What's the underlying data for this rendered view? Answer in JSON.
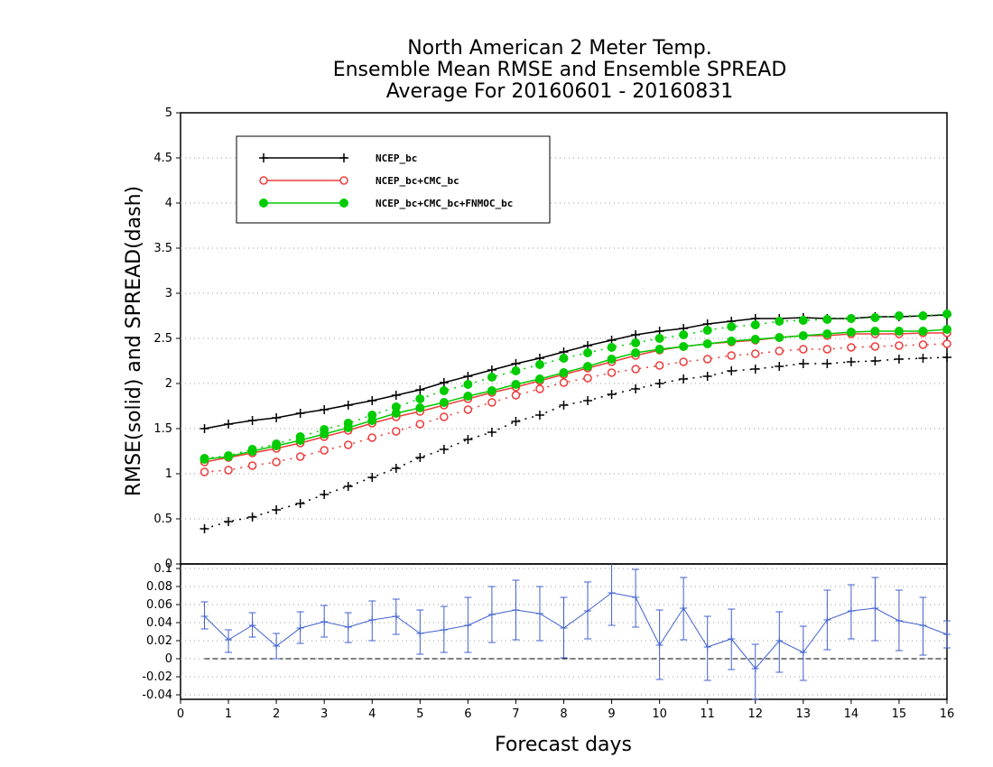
{
  "chart_data": [
    {
      "type": "line",
      "title_lines": [
        "North American 2 Meter Temp.",
        "Ensemble Mean RMSE and Ensemble SPREAD",
        "Average For 20160601 - 20160831"
      ],
      "ylabel": "RMSE(solid) and SPREAD(dash)",
      "xlim": [
        0,
        16
      ],
      "ylim": [
        0,
        5
      ],
      "yticks": [
        "0",
        "0.5",
        "1",
        "1.5",
        "2",
        "2.5",
        "3",
        "3.5",
        "4",
        "4.5",
        "5"
      ],
      "grid": true,
      "legend_position": "top-left",
      "x": [
        0.5,
        1,
        1.5,
        2,
        2.5,
        3,
        3.5,
        4,
        4.5,
        5,
        5.5,
        6,
        6.5,
        7,
        7.5,
        8,
        8.5,
        9,
        9.5,
        10,
        10.5,
        11,
        11.5,
        12,
        12.5,
        13,
        13.5,
        14,
        14.5,
        15,
        15.5,
        16
      ],
      "series": [
        {
          "name": "NCEP_bc",
          "color": "#000000",
          "marker": "plus",
          "rmse": [
            1.5,
            1.55,
            1.59,
            1.62,
            1.67,
            1.71,
            1.76,
            1.81,
            1.87,
            1.93,
            2.01,
            2.08,
            2.15,
            2.22,
            2.28,
            2.35,
            2.42,
            2.48,
            2.54,
            2.58,
            2.61,
            2.66,
            2.69,
            2.72,
            2.72,
            2.73,
            2.72,
            2.72,
            2.74,
            2.74,
            2.75,
            2.76
          ],
          "spread": [
            0.39,
            0.47,
            0.52,
            0.6,
            0.67,
            0.77,
            0.86,
            0.96,
            1.06,
            1.18,
            1.27,
            1.38,
            1.46,
            1.58,
            1.65,
            1.76,
            1.81,
            1.88,
            1.94,
            2.0,
            2.05,
            2.08,
            2.14,
            2.16,
            2.19,
            2.22,
            2.22,
            2.24,
            2.25,
            2.27,
            2.28,
            2.29
          ]
        },
        {
          "name": "NCEP_bc+CMC_bc",
          "color": "#ee3b3b",
          "marker": "open-circle",
          "rmse": [
            1.13,
            1.18,
            1.23,
            1.28,
            1.34,
            1.41,
            1.48,
            1.56,
            1.63,
            1.69,
            1.76,
            1.83,
            1.9,
            1.96,
            2.03,
            2.1,
            2.17,
            2.24,
            2.31,
            2.37,
            2.41,
            2.44,
            2.46,
            2.48,
            2.51,
            2.53,
            2.53,
            2.55,
            2.55,
            2.55,
            2.56,
            2.56
          ],
          "spread": [
            1.02,
            1.04,
            1.09,
            1.13,
            1.19,
            1.26,
            1.32,
            1.4,
            1.47,
            1.55,
            1.63,
            1.71,
            1.79,
            1.87,
            1.94,
            2.01,
            2.06,
            2.12,
            2.16,
            2.2,
            2.24,
            2.27,
            2.31,
            2.33,
            2.36,
            2.38,
            2.38,
            2.4,
            2.41,
            2.42,
            2.43,
            2.44
          ]
        },
        {
          "name": "NCEP_bc+CMC_bc+FNMOC_bc",
          "color": "#00cc00",
          "marker": "filled-circle",
          "rmse": [
            1.16,
            1.19,
            1.25,
            1.31,
            1.37,
            1.44,
            1.51,
            1.59,
            1.67,
            1.73,
            1.79,
            1.86,
            1.92,
            1.99,
            2.05,
            2.12,
            2.19,
            2.27,
            2.34,
            2.38,
            2.41,
            2.44,
            2.47,
            2.49,
            2.51,
            2.53,
            2.55,
            2.57,
            2.58,
            2.58,
            2.58,
            2.6
          ],
          "spread": [
            1.17,
            1.2,
            1.27,
            1.33,
            1.41,
            1.49,
            1.56,
            1.65,
            1.74,
            1.83,
            1.92,
            1.99,
            2.07,
            2.14,
            2.21,
            2.28,
            2.34,
            2.4,
            2.45,
            2.5,
            2.54,
            2.59,
            2.63,
            2.65,
            2.69,
            2.7,
            2.71,
            2.72,
            2.73,
            2.75,
            2.75,
            2.77
          ]
        }
      ]
    },
    {
      "type": "line",
      "xlabel": "Forecast days",
      "xlim": [
        0,
        16
      ],
      "ylim": [
        -0.045,
        0.105
      ],
      "xticks": [
        "0",
        "1",
        "2",
        "3",
        "4",
        "5",
        "6",
        "7",
        "8",
        "9",
        "10",
        "11",
        "12",
        "13",
        "14",
        "15",
        "16"
      ],
      "yticks": [
        "-0.04",
        "-0.02",
        "0",
        "0.02",
        "0.04",
        "0.06",
        "0.08",
        "0.1"
      ],
      "reference_line": 0,
      "error_bars": true,
      "series": [
        {
          "color": "#4060d0",
          "x": [
            0.5,
            1,
            1.5,
            2,
            2.5,
            3,
            3.5,
            4,
            4.5,
            5,
            5.5,
            6,
            6.5,
            7,
            7.5,
            8,
            8.5,
            9,
            9.5,
            10,
            10.5,
            11,
            11.5,
            12,
            12.5,
            13,
            13.5,
            14,
            14.5,
            15,
            15.5,
            16
          ],
          "values": [
            0.047,
            0.021,
            0.037,
            0.014,
            0.034,
            0.041,
            0.035,
            0.043,
            0.047,
            0.028,
            0.032,
            0.037,
            0.049,
            0.054,
            0.05,
            0.034,
            0.053,
            0.073,
            0.068,
            0.015,
            0.056,
            0.013,
            0.022,
            -0.011,
            0.02,
            0.007,
            0.043,
            0.053,
            0.056,
            0.042,
            0.037,
            0.027
          ],
          "upper": [
            0.063,
            0.032,
            0.051,
            0.028,
            0.052,
            0.059,
            0.051,
            0.064,
            0.066,
            0.054,
            0.058,
            0.068,
            0.08,
            0.087,
            0.08,
            0.068,
            0.085,
            0.106,
            0.099,
            0.054,
            0.09,
            0.047,
            0.055,
            0.016,
            0.052,
            0.036,
            0.076,
            0.082,
            0.09,
            0.076,
            0.068,
            0.042
          ],
          "lower": [
            0.033,
            0.007,
            0.024,
            0.0,
            0.017,
            0.024,
            0.018,
            0.02,
            0.027,
            0.005,
            0.007,
            0.007,
            0.018,
            0.021,
            0.02,
            0.001,
            0.022,
            0.037,
            0.035,
            -0.023,
            0.021,
            -0.024,
            -0.012,
            -0.045,
            -0.015,
            -0.024,
            0.01,
            0.022,
            0.02,
            0.009,
            0.004,
            0.012
          ]
        }
      ]
    }
  ]
}
